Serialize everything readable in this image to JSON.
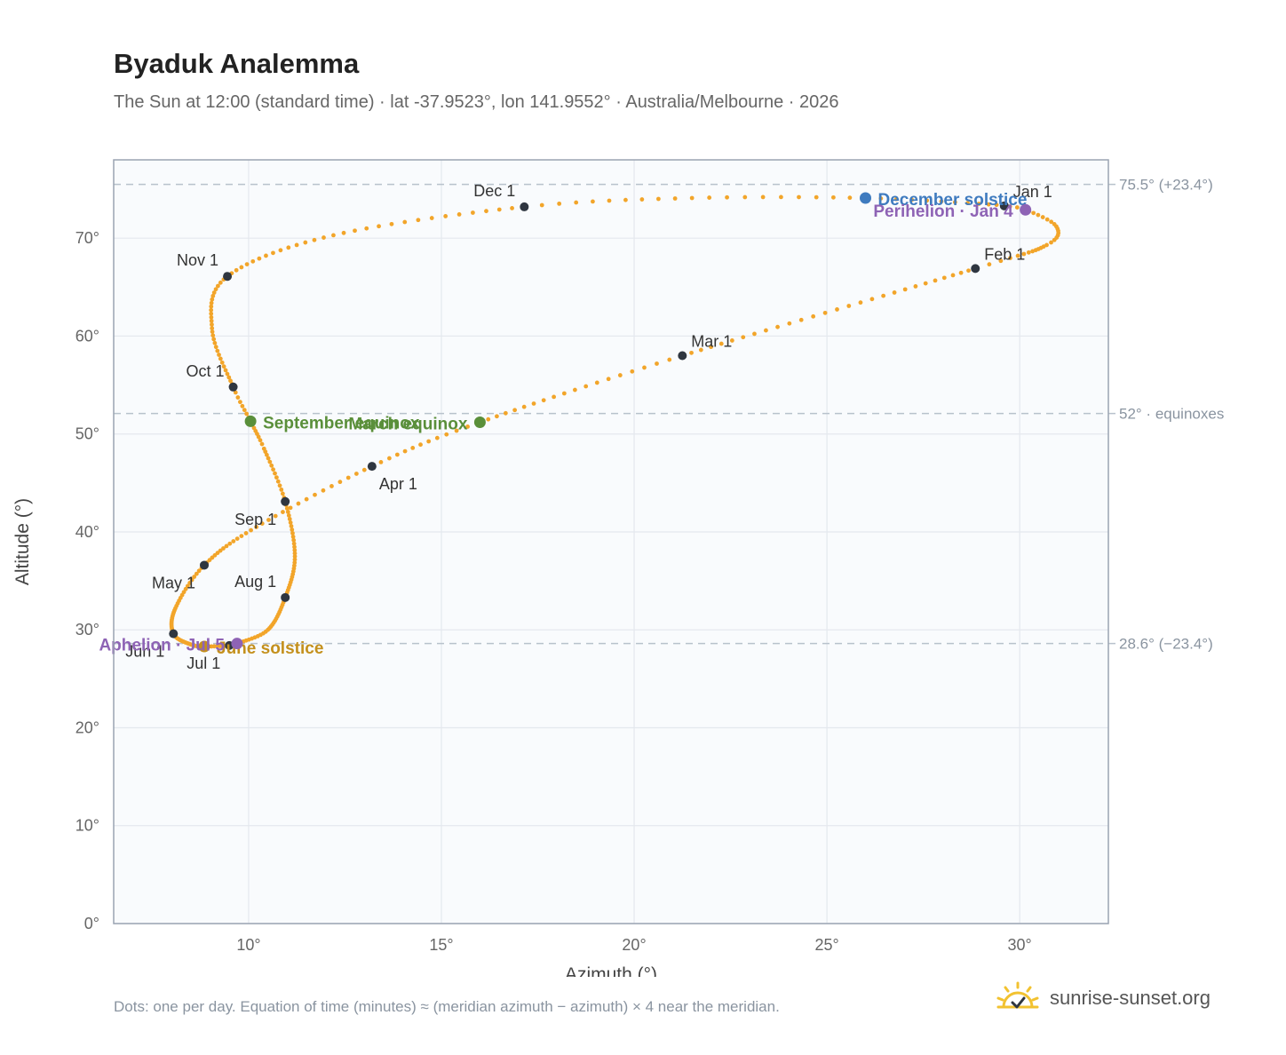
{
  "header": {
    "title": "Byaduk Analemma",
    "subtitle": "The Sun at 12:00 (standard time) · lat -37.9523°, lon 141.9552° · Australia/Melbourne · 2026"
  },
  "footer": {
    "note": "Dots: one per day. Equation of time (minutes) ≈ (meridian azimuth − azimuth) × 4 near the meridian.",
    "brand": "sunrise-sunset.org"
  },
  "colors": {
    "curve": "#f2a52a",
    "month_marker": "#2f3640",
    "equinox": "#5a8f3a",
    "december_solstice": "#3f7bbf",
    "june_solstice": "#c4901c",
    "apsis": "#8e63b5",
    "grid": "#e4e8ee",
    "plot_bg": "#f9fbfd",
    "frame": "#9aa4b2",
    "reference_line": "#b8c2cc",
    "brand_icon": "#f2c230"
  },
  "chart_data": {
    "type": "scatter",
    "xlabel": "Azimuth (°)",
    "ylabel": "Altitude (°)",
    "xlim": [
      6.5,
      32.3
    ],
    "ylim": [
      0,
      78
    ],
    "xticks": [
      10,
      15,
      20,
      25,
      30
    ],
    "xtick_labels": [
      "10°",
      "15°",
      "20°",
      "25°",
      "30°"
    ],
    "yticks": [
      0,
      10,
      20,
      30,
      40,
      50,
      60,
      70
    ],
    "ytick_labels": [
      "0°",
      "10°",
      "20°",
      "30°",
      "40°",
      "50°",
      "60°",
      "70°"
    ],
    "grid": true,
    "curve_anchors": [
      {
        "day": 1,
        "az": 29.6,
        "alt": 73.3
      },
      {
        "day": 4,
        "az": 30.15,
        "alt": 72.9
      },
      {
        "day": 12,
        "az": 30.95,
        "alt": 71.2
      },
      {
        "day": 20,
        "az": 30.7,
        "alt": 69.3
      },
      {
        "day": 32,
        "az": 28.85,
        "alt": 66.9
      },
      {
        "day": 60,
        "az": 21.25,
        "alt": 58.0
      },
      {
        "day": 79,
        "az": 16.0,
        "alt": 51.2
      },
      {
        "day": 91,
        "az": 13.2,
        "alt": 46.7
      },
      {
        "day": 106,
        "az": 10.2,
        "alt": 40.5
      },
      {
        "day": 121,
        "az": 8.85,
        "alt": 36.6
      },
      {
        "day": 136,
        "az": 8.1,
        "alt": 32.2
      },
      {
        "day": 152,
        "az": 8.05,
        "alt": 29.6
      },
      {
        "day": 165,
        "az": 8.5,
        "alt": 28.5
      },
      {
        "day": 172,
        "az": 8.85,
        "alt": 28.3
      },
      {
        "day": 182,
        "az": 9.5,
        "alt": 28.4
      },
      {
        "day": 186,
        "az": 9.7,
        "alt": 28.6
      },
      {
        "day": 198,
        "az": 10.5,
        "alt": 30.0
      },
      {
        "day": 213,
        "az": 10.95,
        "alt": 33.3
      },
      {
        "day": 228,
        "az": 11.2,
        "alt": 37.5
      },
      {
        "day": 244,
        "az": 10.95,
        "alt": 43.1
      },
      {
        "day": 258,
        "az": 10.4,
        "alt": 48.5
      },
      {
        "day": 266,
        "az": 10.05,
        "alt": 51.3
      },
      {
        "day": 274,
        "az": 9.6,
        "alt": 54.8
      },
      {
        "day": 290,
        "az": 9.05,
        "alt": 60.8
      },
      {
        "day": 305,
        "az": 9.45,
        "alt": 66.1
      },
      {
        "day": 320,
        "az": 12.2,
        "alt": 70.3
      },
      {
        "day": 335,
        "az": 17.15,
        "alt": 73.2
      },
      {
        "day": 345,
        "az": 21.5,
        "alt": 74.1
      },
      {
        "day": 355,
        "az": 26.0,
        "alt": 74.1
      },
      {
        "day": 365,
        "az": 29.4,
        "alt": 73.4
      }
    ],
    "month_markers": [
      {
        "label": "Jan 1",
        "az": 29.6,
        "alt": 73.3,
        "pos": "above-right"
      },
      {
        "label": "Feb 1",
        "az": 28.85,
        "alt": 66.9,
        "pos": "above-right"
      },
      {
        "label": "Mar 1",
        "az": 21.25,
        "alt": 58.0,
        "pos": "above-right"
      },
      {
        "label": "Apr 1",
        "az": 13.2,
        "alt": 46.7,
        "pos": "below-right"
      },
      {
        "label": "May 1",
        "az": 8.85,
        "alt": 36.6,
        "pos": "below-left"
      },
      {
        "label": "Jun 1",
        "az": 8.05,
        "alt": 29.6,
        "pos": "below-left"
      },
      {
        "label": "Jul 1",
        "az": 9.5,
        "alt": 28.4,
        "pos": "below-left"
      },
      {
        "label": "Aug 1",
        "az": 10.95,
        "alt": 33.3,
        "pos": "above-left"
      },
      {
        "label": "Sep 1",
        "az": 10.95,
        "alt": 43.1,
        "pos": "below-left"
      },
      {
        "label": "Oct 1",
        "az": 9.6,
        "alt": 54.8,
        "pos": "above-left"
      },
      {
        "label": "Nov 1",
        "az": 9.45,
        "alt": 66.1,
        "pos": "above-left"
      },
      {
        "label": "Dec 1",
        "az": 17.15,
        "alt": 73.2,
        "pos": "above-left"
      }
    ],
    "events": [
      {
        "label": "December solstice",
        "az": 26.0,
        "alt": 74.1,
        "color": "#3f7bbf",
        "pos": "right"
      },
      {
        "label": "Perihelion · Jan 4",
        "az": 30.15,
        "alt": 72.9,
        "color": "#8e63b5",
        "pos": "left"
      },
      {
        "label": "March equinox",
        "az": 16.0,
        "alt": 51.2,
        "color": "#5a8f3a",
        "pos": "left"
      },
      {
        "label": "September equinox",
        "az": 10.05,
        "alt": 51.3,
        "color": "#5a8f3a",
        "pos": "right"
      },
      {
        "label": "June solstice",
        "az": 8.85,
        "alt": 28.3,
        "color": "#c4901c",
        "pos": "right"
      },
      {
        "label": "Aphelion · Jul 5",
        "az": 9.7,
        "alt": 28.6,
        "color": "#8e63b5",
        "pos": "left"
      }
    ],
    "reference_lines": [
      {
        "alt": 75.5,
        "label": "75.5° (+23.4°)"
      },
      {
        "alt": 52.1,
        "label": "52° · equinoxes"
      },
      {
        "alt": 28.6,
        "label": "28.6° (−23.4°)"
      }
    ]
  }
}
